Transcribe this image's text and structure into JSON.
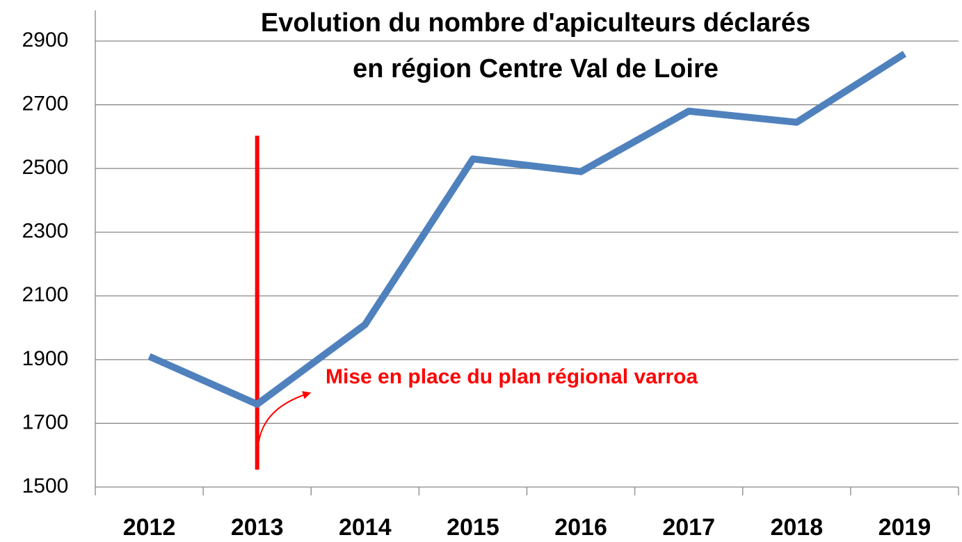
{
  "chart_data": {
    "type": "line",
    "title": [
      "Evolution du nombre d'apiculteurs déclarés",
      "en région Centre Val de Loire"
    ],
    "annotation": "Mise en place du plan régional varroa",
    "categories": [
      "2012",
      "2013",
      "2014",
      "2015",
      "2016",
      "2017",
      "2018",
      "2019"
    ],
    "series": [
      {
        "color": "#4f81bd",
        "values": [
          1910,
          1760,
          2010,
          2530,
          2490,
          2680,
          2645,
          2860
        ]
      }
    ],
    "ylim": [
      1500,
      2900
    ],
    "yticks": [
      1500,
      1700,
      1900,
      2100,
      2300,
      2500,
      2700,
      2900
    ],
    "grid": true
  }
}
